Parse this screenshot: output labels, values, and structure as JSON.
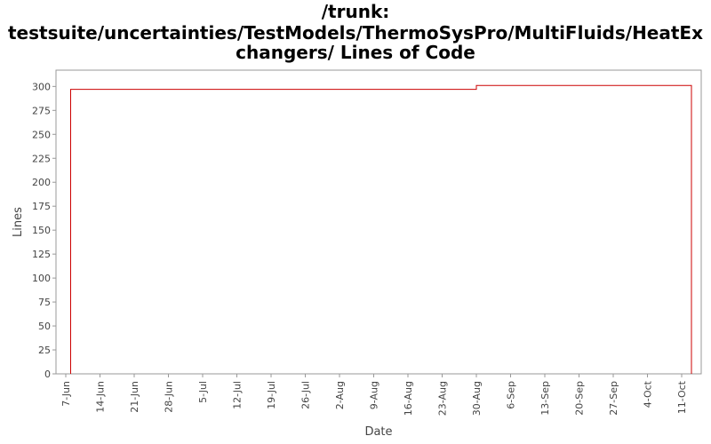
{
  "chart_data": {
    "type": "line",
    "title": [
      "/trunk:",
      "testsuite/uncertainties/TestModels/ThermoSysPro/MultiFluids/HeatEx",
      "changers/ Lines of Code"
    ],
    "xlabel": "Date",
    "ylabel": "Lines",
    "x": [
      "8-Jun",
      "8-Jun",
      "30-Aug",
      "30-Aug",
      "13-Oct",
      "13-Oct"
    ],
    "series": [
      {
        "name": "Lines of Code",
        "color": "#cc0000",
        "values": [
          0,
          297,
          297,
          301,
          301,
          0
        ]
      }
    ],
    "xlim": [
      "5-Jun",
      "15-Oct"
    ],
    "xticks": [
      "7-Jun",
      "14-Jun",
      "21-Jun",
      "28-Jun",
      "5-Jul",
      "12-Jul",
      "19-Jul",
      "26-Jul",
      "2-Aug",
      "9-Aug",
      "16-Aug",
      "23-Aug",
      "30-Aug",
      "6-Sep",
      "13-Sep",
      "20-Sep",
      "27-Sep",
      "4-Oct",
      "11-Oct"
    ],
    "ylim": [
      0,
      317
    ],
    "yticks": [
      0,
      25,
      50,
      75,
      100,
      125,
      150,
      175,
      200,
      225,
      250,
      275,
      300
    ],
    "grid": false
  }
}
